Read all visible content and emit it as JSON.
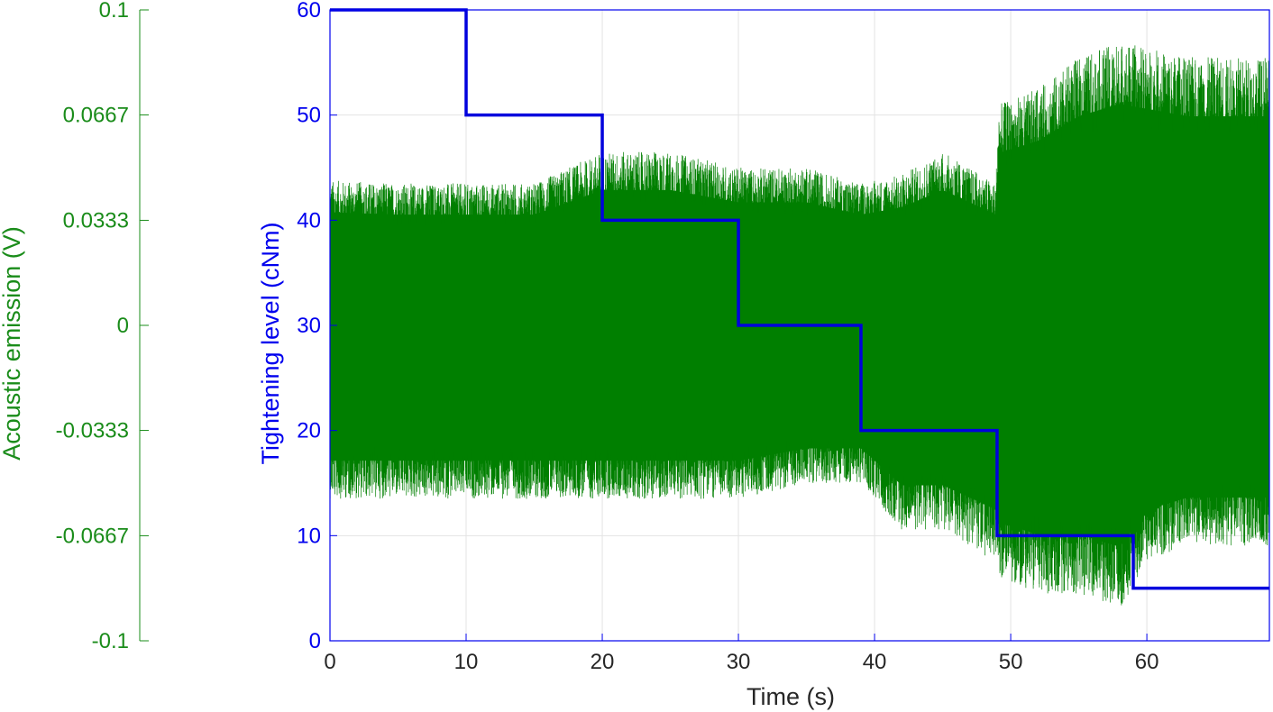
{
  "chart_data": {
    "type": "line",
    "xlabel": "Time (s)",
    "x_ticks": [
      "0",
      "10",
      "20",
      "30",
      "40",
      "50",
      "60"
    ],
    "xlim": [
      0,
      69
    ],
    "grid": true,
    "left_axis": {
      "label": "Acoustic emission (V)",
      "color": "#1a8c1a",
      "ylim": [
        -0.1,
        0.1
      ],
      "ticks": [
        "0.1",
        "0.0667",
        "0.0333",
        "0",
        "-0.0333",
        "-0.0667",
        "-0.1"
      ],
      "tick_values": [
        0.1,
        0.0667,
        0.0333,
        0,
        -0.0333,
        -0.0667,
        -0.1
      ]
    },
    "right_axis": {
      "label": "Tightening level (cNm)",
      "color": "#0000ee",
      "ylim": [
        0,
        60
      ],
      "ticks": [
        "60",
        "50",
        "40",
        "30",
        "20",
        "10",
        "0"
      ],
      "tick_values": [
        60,
        50,
        40,
        30,
        20,
        10,
        0
      ]
    },
    "series": [
      {
        "kind": "step",
        "axis": "right",
        "color": "#0000dd",
        "x": [
          0,
          10,
          10,
          20,
          20,
          30,
          30,
          39,
          39,
          49,
          49,
          59,
          59,
          69
        ],
        "y": [
          60,
          60,
          50,
          50,
          40,
          40,
          30,
          30,
          20,
          20,
          10,
          10,
          5,
          5
        ]
      },
      {
        "kind": "envelope",
        "axis": "left",
        "color": "#007f00",
        "x": [
          0,
          5,
          10,
          15,
          20,
          25,
          30,
          35,
          39,
          42,
          45,
          47,
          48.9,
          49.1,
          52,
          55,
          58,
          60,
          63,
          66,
          69
        ],
        "upper": [
          0.046,
          0.045,
          0.045,
          0.045,
          0.055,
          0.055,
          0.05,
          0.05,
          0.045,
          0.048,
          0.055,
          0.05,
          0.045,
          0.07,
          0.075,
          0.085,
          0.09,
          0.088,
          0.085,
          0.085,
          0.085
        ],
        "lower": [
          -0.055,
          -0.055,
          -0.055,
          -0.055,
          -0.055,
          -0.055,
          -0.055,
          -0.05,
          -0.05,
          -0.065,
          -0.065,
          -0.07,
          -0.075,
          -0.08,
          -0.085,
          -0.085,
          -0.09,
          -0.075,
          -0.07,
          -0.07,
          -0.07
        ]
      }
    ]
  }
}
